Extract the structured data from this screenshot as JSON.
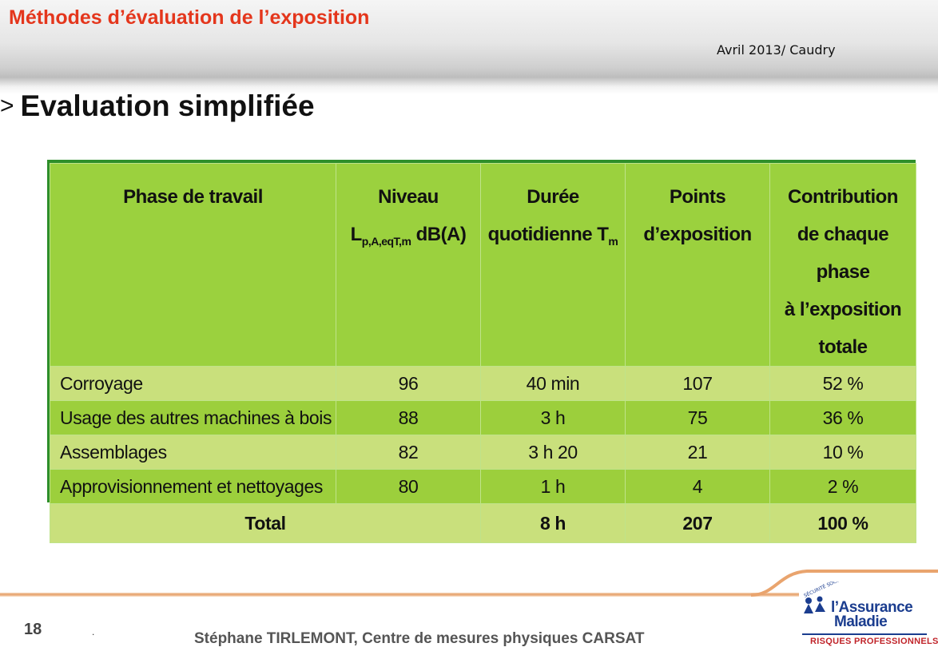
{
  "header": {
    "title": "Méthodes d’évaluation de l’exposition",
    "date_location": "Avril 2013/ Caudry"
  },
  "section": {
    "marker": ">",
    "title": "Evaluation simplifiée"
  },
  "table": {
    "headers": {
      "phase": "Phase de travail",
      "niveau_line1": "Niveau",
      "niveau_line2_main": "L",
      "niveau_line2_sub": "p,A,eqT,m",
      "niveau_line2_unit": " dB(A)",
      "duree_line1": "Durée",
      "duree_line2_main": "quotidienne T",
      "duree_line2_sub": "m",
      "points_line1": "Points",
      "points_line2": "d’exposition",
      "contribution_line1": "Contribution",
      "contribution_line2": "de chaque phase",
      "contribution_line3": "à l’exposition",
      "contribution_line4": "totale"
    },
    "rows": [
      {
        "phase": "Corroyage",
        "niveau": "96",
        "duree": "40 min",
        "points": "107",
        "contribution": "52 %"
      },
      {
        "phase": "Usage des autres machines à bois",
        "niveau": "88",
        "duree": "3 h",
        "points": "75",
        "contribution": "36 %"
      },
      {
        "phase": "Assemblages",
        "niveau": "82",
        "duree": "3 h 20",
        "points": "21",
        "contribution": "10 %"
      },
      {
        "phase": "Approvisionnement et nettoyages",
        "niveau": "80",
        "duree": "1 h",
        "points": "4",
        "contribution": "2 %"
      }
    ],
    "total": {
      "label": "Total",
      "duree": "8 h",
      "points": "207",
      "contribution": "100 %"
    }
  },
  "footer": {
    "page_number": "18",
    "dot": ".",
    "author": "Stéphane TIRLEMONT, Centre de mesures physiques CARSAT"
  },
  "logo": {
    "line1": "l’Assurance",
    "line2": "Maladie",
    "line3": "RISQUES PROFESSIONNELS",
    "arc_text": "SÉCURITÉ SOCIALE"
  },
  "colors": {
    "header_title": "#e4361c",
    "table_border": "#2e8f2a",
    "header_bg": "#9bd13e",
    "row_light": "#c9e07c",
    "row_dark": "#9ccf3c",
    "logo_blue": "#1b3d8f",
    "logo_red": "#c0242a"
  }
}
